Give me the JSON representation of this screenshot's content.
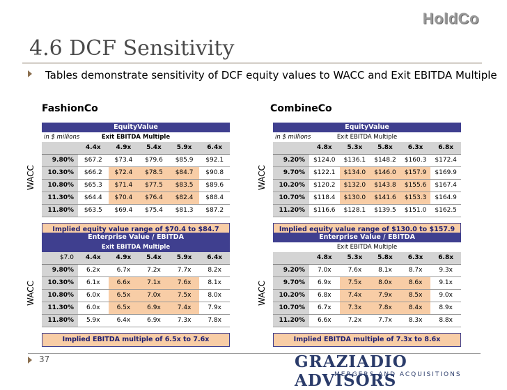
{
  "header": {
    "logo": "HoldCo",
    "title": "4.6 DCF Sensitivity",
    "subtitle": "Tables demonstrate sensitivity of DCF equity values to WACC and Exit EBITDA Multiple"
  },
  "companies": {
    "left": "FashionCo",
    "right": "CombineCo"
  },
  "wacc_label": "WACC",
  "tables": {
    "fc_eq": {
      "title": "EquityValue",
      "unit": "in $ millions",
      "sub": "Exit EBITDA Multiple",
      "corner": "",
      "cols": [
        "4.4x",
        "4.9x",
        "5.4x",
        "5.9x",
        "6.4x"
      ],
      "rows": [
        {
          "wacc": "9.80%",
          "vals": [
            "$67.2",
            "$73.4",
            "$79.6",
            "$85.9",
            "$92.1"
          ]
        },
        {
          "wacc": "10.30%",
          "vals": [
            "$66.2",
            "$72.4",
            "$78.5",
            "$84.7",
            "$90.8"
          ]
        },
        {
          "wacc": "10.80%",
          "vals": [
            "$65.3",
            "$71.4",
            "$77.5",
            "$83.5",
            "$89.6"
          ]
        },
        {
          "wacc": "11.30%",
          "vals": [
            "$64.4",
            "$70.4",
            "$76.4",
            "$82.4",
            "$88.4"
          ]
        },
        {
          "wacc": "11.80%",
          "vals": [
            "$63.5",
            "$69.4",
            "$75.4",
            "$81.3",
            "$87.2"
          ]
        }
      ],
      "footer": "Implied equity value range of $70.4 to $84.7"
    },
    "cc_eq": {
      "title": "EquityValue",
      "unit": "in $ millions",
      "sub": "Exit EBITDA Multiple",
      "corner": "",
      "cols": [
        "4.8x",
        "5.3x",
        "5.8x",
        "6.3x",
        "6.8x"
      ],
      "rows": [
        {
          "wacc": "9.20%",
          "vals": [
            "$124.0",
            "$136.1",
            "$148.2",
            "$160.3",
            "$172.4"
          ]
        },
        {
          "wacc": "9.70%",
          "vals": [
            "$122.1",
            "$134.0",
            "$146.0",
            "$157.9",
            "$169.9"
          ]
        },
        {
          "wacc": "10.20%",
          "vals": [
            "$120.2",
            "$132.0",
            "$143.8",
            "$155.6",
            "$167.4"
          ]
        },
        {
          "wacc": "10.70%",
          "vals": [
            "$118.4",
            "$130.0",
            "$141.6",
            "$153.3",
            "$164.9"
          ]
        },
        {
          "wacc": "11.20%",
          "vals": [
            "$116.6",
            "$128.1",
            "$139.5",
            "$151.0",
            "$162.5"
          ]
        }
      ],
      "footer": "Implied equity value range of $130.0 to $157.9"
    },
    "fc_ev": {
      "title": "Enterprise Value / EBITDA",
      "unit": "",
      "sub": "Exit EBITDA Multiple",
      "corner": "$7.0",
      "cols": [
        "4.4x",
        "4.9x",
        "5.4x",
        "5.9x",
        "6.4x"
      ],
      "rows": [
        {
          "wacc": "9.80%",
          "vals": [
            "6.2x",
            "6.7x",
            "7.2x",
            "7.7x",
            "8.2x"
          ]
        },
        {
          "wacc": "10.30%",
          "vals": [
            "6.1x",
            "6.6x",
            "7.1x",
            "7.6x",
            "8.1x"
          ]
        },
        {
          "wacc": "10.80%",
          "vals": [
            "6.0x",
            "6.5x",
            "7.0x",
            "7.5x",
            "8.0x"
          ]
        },
        {
          "wacc": "11.30%",
          "vals": [
            "6.0x",
            "6.5x",
            "6.9x",
            "7.4x",
            "7.9x"
          ]
        },
        {
          "wacc": "11.80%",
          "vals": [
            "5.9x",
            "6.4x",
            "6.9x",
            "7.3x",
            "7.8x"
          ]
        }
      ],
      "footer": "Implied EBITDA multiple of 6.5x to 7.6x"
    },
    "cc_ev": {
      "title": "Enterprise Value / EBITDA",
      "unit": "",
      "sub": "Exit EBITDA Multiple",
      "corner": "",
      "cols": [
        "4.8x",
        "5.3x",
        "5.8x",
        "6.3x",
        "6.8x"
      ],
      "rows": [
        {
          "wacc": "9.20%",
          "vals": [
            "7.0x",
            "7.6x",
            "8.1x",
            "8.7x",
            "9.3x"
          ]
        },
        {
          "wacc": "9.70%",
          "vals": [
            "6.9x",
            "7.5x",
            "8.0x",
            "8.6x",
            "9.1x"
          ]
        },
        {
          "wacc": "10.20%",
          "vals": [
            "6.8x",
            "7.4x",
            "7.9x",
            "8.5x",
            "9.0x"
          ]
        },
        {
          "wacc": "10.70%",
          "vals": [
            "6.7x",
            "7.3x",
            "7.8x",
            "8.4x",
            "8.9x"
          ]
        },
        {
          "wacc": "11.20%",
          "vals": [
            "6.6x",
            "7.2x",
            "7.7x",
            "8.3x",
            "8.8x"
          ]
        }
      ],
      "footer": "Implied EBITDA multiple of 7.3x to 8.6x"
    }
  },
  "highlight_color": "#f8cda6",
  "header_color": "#3f3f8f",
  "footer": {
    "page_number": "37",
    "brand": "GRAZIADIO ADVISORS",
    "brand_sub": "MERGERS AND ACQUISITIONS"
  }
}
